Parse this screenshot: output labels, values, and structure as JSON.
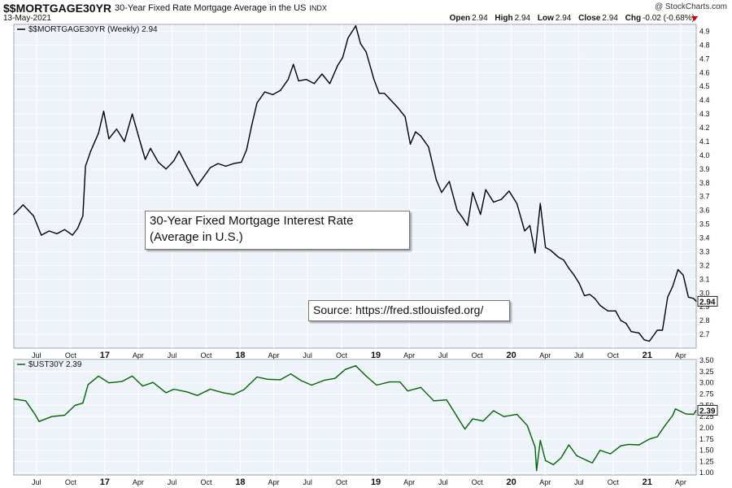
{
  "header": {
    "symbol": "$$MORTGAGE30YR",
    "description": "30-Year Fixed Rate Mortgage Average in the US",
    "exchange": "INDX",
    "date": "13-May-2021",
    "copyright": "@ StockCharts.com",
    "open_label": "Open",
    "open": "2.94",
    "high_label": "High",
    "high": "2.94",
    "low_label": "Low",
    "low": "2.94",
    "close_label": "Close",
    "close": "2.94",
    "chg_label": "Chg",
    "chg": "-0.02 (-0.68%)"
  },
  "annotations": {
    "title_line1": "30-Year Fixed Mortgage Interest Rate",
    "title_line2": "(Average in U.S.)",
    "source": "Source: https://fred.stlouisfed.org/"
  },
  "colors": {
    "mortgage": "#000000",
    "treasury": "#006400",
    "panel_bg": "#eef3fa",
    "grid": "#ffffff",
    "down": "#cc0000"
  },
  "chart_data": [
    {
      "type": "line",
      "legend": "$$MORTGAGE30YR (Weekly) 2.94",
      "last_value": "2.94",
      "xlim": [
        "2016-05-01",
        "2021-05-13"
      ],
      "ylim": [
        2.6,
        4.95
      ],
      "yticks": [
        2.7,
        2.8,
        2.9,
        3.0,
        3.1,
        3.2,
        3.3,
        3.4,
        3.5,
        3.6,
        3.7,
        3.8,
        3.9,
        4.0,
        4.1,
        4.2,
        4.3,
        4.4,
        4.5,
        4.6,
        4.7,
        4.8,
        4.9
      ],
      "xticks": [
        {
          "date": "2016-07-01",
          "label": "Jul"
        },
        {
          "date": "2016-10-01",
          "label": "Oct"
        },
        {
          "date": "2017-01-01",
          "label": "17"
        },
        {
          "date": "2017-04-01",
          "label": "Apr"
        },
        {
          "date": "2017-07-01",
          "label": "Jul"
        },
        {
          "date": "2017-10-01",
          "label": "Oct"
        },
        {
          "date": "2018-01-01",
          "label": "18"
        },
        {
          "date": "2018-04-01",
          "label": "Apr"
        },
        {
          "date": "2018-07-01",
          "label": "Jul"
        },
        {
          "date": "2018-10-01",
          "label": "Oct"
        },
        {
          "date": "2019-01-01",
          "label": "19"
        },
        {
          "date": "2019-04-01",
          "label": "Apr"
        },
        {
          "date": "2019-07-01",
          "label": "Jul"
        },
        {
          "date": "2019-10-01",
          "label": "Oct"
        },
        {
          "date": "2020-01-01",
          "label": "20"
        },
        {
          "date": "2020-04-01",
          "label": "Apr"
        },
        {
          "date": "2020-07-01",
          "label": "Jul"
        },
        {
          "date": "2020-10-01",
          "label": "Oct"
        },
        {
          "date": "2021-01-01",
          "label": "21"
        },
        {
          "date": "2021-04-01",
          "label": "Apr"
        }
      ],
      "points": [
        [
          "2016-05-01",
          3.57
        ],
        [
          "2016-05-26",
          3.64
        ],
        [
          "2016-06-23",
          3.56
        ],
        [
          "2016-07-14",
          3.42
        ],
        [
          "2016-08-04",
          3.45
        ],
        [
          "2016-08-25",
          3.43
        ],
        [
          "2016-09-15",
          3.46
        ],
        [
          "2016-10-06",
          3.42
        ],
        [
          "2016-10-20",
          3.47
        ],
        [
          "2016-11-03",
          3.56
        ],
        [
          "2016-11-10",
          3.92
        ],
        [
          "2016-11-24",
          4.03
        ],
        [
          "2016-12-15",
          4.16
        ],
        [
          "2016-12-29",
          4.32
        ],
        [
          "2017-01-12",
          4.12
        ],
        [
          "2017-02-02",
          4.19
        ],
        [
          "2017-02-23",
          4.1
        ],
        [
          "2017-03-16",
          4.3
        ],
        [
          "2017-04-06",
          4.1
        ],
        [
          "2017-04-20",
          3.97
        ],
        [
          "2017-05-04",
          4.05
        ],
        [
          "2017-05-25",
          3.95
        ],
        [
          "2017-06-15",
          3.9
        ],
        [
          "2017-07-06",
          3.96
        ],
        [
          "2017-07-20",
          4.03
        ],
        [
          "2017-08-10",
          3.92
        ],
        [
          "2017-09-07",
          3.78
        ],
        [
          "2017-09-21",
          3.83
        ],
        [
          "2017-10-12",
          3.91
        ],
        [
          "2017-11-02",
          3.94
        ],
        [
          "2017-11-23",
          3.92
        ],
        [
          "2017-12-14",
          3.94
        ],
        [
          "2018-01-04",
          3.95
        ],
        [
          "2018-01-18",
          4.04
        ],
        [
          "2018-02-01",
          4.22
        ],
        [
          "2018-02-15",
          4.38
        ],
        [
          "2018-03-08",
          4.46
        ],
        [
          "2018-03-29",
          4.44
        ],
        [
          "2018-04-19",
          4.47
        ],
        [
          "2018-05-10",
          4.55
        ],
        [
          "2018-05-24",
          4.66
        ],
        [
          "2018-06-07",
          4.54
        ],
        [
          "2018-06-28",
          4.55
        ],
        [
          "2018-07-19",
          4.52
        ],
        [
          "2018-08-09",
          4.59
        ],
        [
          "2018-08-30",
          4.52
        ],
        [
          "2018-09-20",
          4.65
        ],
        [
          "2018-10-04",
          4.71
        ],
        [
          "2018-10-18",
          4.85
        ],
        [
          "2018-11-08",
          4.94
        ],
        [
          "2018-11-21",
          4.81
        ],
        [
          "2018-12-06",
          4.75
        ],
        [
          "2018-12-27",
          4.55
        ],
        [
          "2019-01-10",
          4.45
        ],
        [
          "2019-01-24",
          4.45
        ],
        [
          "2019-02-07",
          4.41
        ],
        [
          "2019-02-28",
          4.35
        ],
        [
          "2019-03-21",
          4.28
        ],
        [
          "2019-04-04",
          4.08
        ],
        [
          "2019-04-18",
          4.17
        ],
        [
          "2019-05-02",
          4.14
        ],
        [
          "2019-05-23",
          4.06
        ],
        [
          "2019-06-13",
          3.82
        ],
        [
          "2019-06-27",
          3.73
        ],
        [
          "2019-07-18",
          3.81
        ],
        [
          "2019-08-08",
          3.6
        ],
        [
          "2019-08-22",
          3.55
        ],
        [
          "2019-09-05",
          3.49
        ],
        [
          "2019-09-19",
          3.73
        ],
        [
          "2019-10-10",
          3.57
        ],
        [
          "2019-10-24",
          3.75
        ],
        [
          "2019-11-14",
          3.66
        ],
        [
          "2019-12-05",
          3.68
        ],
        [
          "2019-12-26",
          3.74
        ],
        [
          "2020-01-16",
          3.65
        ],
        [
          "2020-02-06",
          3.45
        ],
        [
          "2020-02-20",
          3.49
        ],
        [
          "2020-03-05",
          3.29
        ],
        [
          "2020-03-19",
          3.65
        ],
        [
          "2020-04-02",
          3.33
        ],
        [
          "2020-04-16",
          3.31
        ],
        [
          "2020-05-07",
          3.26
        ],
        [
          "2020-05-21",
          3.24
        ],
        [
          "2020-06-04",
          3.18
        ],
        [
          "2020-06-18",
          3.13
        ],
        [
          "2020-07-02",
          3.07
        ],
        [
          "2020-07-16",
          2.98
        ],
        [
          "2020-07-30",
          2.99
        ],
        [
          "2020-08-13",
          2.96
        ],
        [
          "2020-08-27",
          2.91
        ],
        [
          "2020-09-17",
          2.87
        ],
        [
          "2020-10-08",
          2.87
        ],
        [
          "2020-10-22",
          2.8
        ],
        [
          "2020-11-05",
          2.78
        ],
        [
          "2020-11-19",
          2.72
        ],
        [
          "2020-12-10",
          2.71
        ],
        [
          "2020-12-24",
          2.66
        ],
        [
          "2021-01-07",
          2.65
        ],
        [
          "2021-01-28",
          2.73
        ],
        [
          "2021-02-11",
          2.73
        ],
        [
          "2021-02-25",
          2.97
        ],
        [
          "2021-03-11",
          3.05
        ],
        [
          "2021-03-25",
          3.17
        ],
        [
          "2021-04-08",
          3.13
        ],
        [
          "2021-04-22",
          2.97
        ],
        [
          "2021-05-06",
          2.96
        ],
        [
          "2021-05-13",
          2.94
        ]
      ]
    },
    {
      "type": "line",
      "legend": "$UST30Y 2.39",
      "last_value": "2.39",
      "xlim": [
        "2016-05-01",
        "2021-05-13"
      ],
      "ylim": [
        0.95,
        3.52
      ],
      "yticks": [
        1.0,
        1.25,
        1.5,
        1.75,
        2.0,
        2.25,
        2.5,
        2.75,
        3.0,
        3.25,
        3.5
      ],
      "points": [
        [
          "2016-05-01",
          2.64
        ],
        [
          "2016-06-02",
          2.6
        ],
        [
          "2016-06-27",
          2.3
        ],
        [
          "2016-07-08",
          2.14
        ],
        [
          "2016-08-11",
          2.25
        ],
        [
          "2016-09-15",
          2.28
        ],
        [
          "2016-10-13",
          2.5
        ],
        [
          "2016-11-03",
          2.55
        ],
        [
          "2016-11-17",
          2.96
        ],
        [
          "2016-12-15",
          3.15
        ],
        [
          "2017-01-12",
          3.0
        ],
        [
          "2017-02-16",
          3.03
        ],
        [
          "2017-03-16",
          3.15
        ],
        [
          "2017-04-13",
          2.93
        ],
        [
          "2017-05-11",
          3.01
        ],
        [
          "2017-06-15",
          2.78
        ],
        [
          "2017-07-06",
          2.86
        ],
        [
          "2017-08-10",
          2.8
        ],
        [
          "2017-09-07",
          2.72
        ],
        [
          "2017-10-12",
          2.86
        ],
        [
          "2017-11-16",
          2.78
        ],
        [
          "2017-12-14",
          2.74
        ],
        [
          "2018-01-11",
          2.85
        ],
        [
          "2018-02-15",
          3.13
        ],
        [
          "2018-03-15",
          3.08
        ],
        [
          "2018-04-19",
          3.07
        ],
        [
          "2018-05-17",
          3.2
        ],
        [
          "2018-06-14",
          3.05
        ],
        [
          "2018-07-12",
          2.95
        ],
        [
          "2018-08-16",
          3.06
        ],
        [
          "2018-09-13",
          3.1
        ],
        [
          "2018-10-11",
          3.3
        ],
        [
          "2018-11-08",
          3.38
        ],
        [
          "2018-12-06",
          3.15
        ],
        [
          "2019-01-03",
          2.95
        ],
        [
          "2019-02-07",
          3.02
        ],
        [
          "2019-03-07",
          3.02
        ],
        [
          "2019-03-28",
          2.82
        ],
        [
          "2019-05-02",
          2.9
        ],
        [
          "2019-06-06",
          2.6
        ],
        [
          "2019-07-11",
          2.62
        ],
        [
          "2019-08-08",
          2.25
        ],
        [
          "2019-08-29",
          1.97
        ],
        [
          "2019-09-19",
          2.2
        ],
        [
          "2019-10-17",
          2.15
        ],
        [
          "2019-11-14",
          2.38
        ],
        [
          "2019-12-12",
          2.25
        ],
        [
          "2020-01-16",
          2.3
        ],
        [
          "2020-02-13",
          2.05
        ],
        [
          "2020-03-05",
          1.57
        ],
        [
          "2020-03-09",
          1.05
        ],
        [
          "2020-03-19",
          1.72
        ],
        [
          "2020-04-02",
          1.27
        ],
        [
          "2020-04-23",
          1.18
        ],
        [
          "2020-05-14",
          1.33
        ],
        [
          "2020-06-04",
          1.62
        ],
        [
          "2020-06-25",
          1.38
        ],
        [
          "2020-07-23",
          1.27
        ],
        [
          "2020-08-06",
          1.22
        ],
        [
          "2020-08-27",
          1.5
        ],
        [
          "2020-09-24",
          1.42
        ],
        [
          "2020-10-22",
          1.6
        ],
        [
          "2020-11-12",
          1.63
        ],
        [
          "2020-12-10",
          1.62
        ],
        [
          "2021-01-07",
          1.75
        ],
        [
          "2021-01-28",
          1.8
        ],
        [
          "2021-02-18",
          2.05
        ],
        [
          "2021-03-11",
          2.28
        ],
        [
          "2021-03-18",
          2.42
        ],
        [
          "2021-04-15",
          2.31
        ],
        [
          "2021-05-06",
          2.3
        ],
        [
          "2021-05-13",
          2.39
        ]
      ]
    }
  ]
}
